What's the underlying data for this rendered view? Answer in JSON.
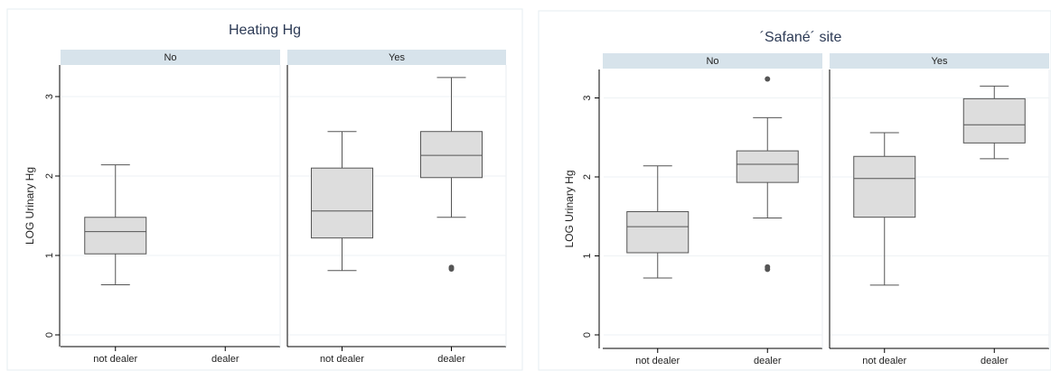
{
  "chart_data": [
    {
      "type": "box",
      "title": "Heating Hg",
      "ylabel": "LOG Urinary Hg",
      "ylim": [
        0,
        3.3
      ],
      "yticks": [
        "0",
        "1",
        "2",
        "3"
      ],
      "categories": [
        "not dealer",
        "dealer"
      ],
      "grid": true,
      "panels": [
        {
          "label": "No",
          "boxes": [
            {
              "category": "not dealer",
              "min": 0.63,
              "q1": 1.02,
              "median": 1.3,
              "q3": 1.48,
              "max": 2.14,
              "outliers": []
            },
            null
          ]
        },
        {
          "label": "Yes",
          "boxes": [
            {
              "category": "not dealer",
              "min": 0.81,
              "q1": 1.22,
              "median": 1.56,
              "q3": 2.1,
              "max": 2.56,
              "outliers": []
            },
            {
              "category": "dealer",
              "min": 1.48,
              "q1": 1.98,
              "median": 2.26,
              "q3": 2.56,
              "max": 3.24,
              "outliers": [
                0.83,
                0.85
              ]
            }
          ]
        }
      ]
    },
    {
      "type": "box",
      "title": "´Safané´ site",
      "ylabel": "LOG Urinary Hg",
      "ylim": [
        0,
        3.3
      ],
      "yticks": [
        "0",
        "1",
        "2",
        "3"
      ],
      "categories": [
        "not dealer",
        "dealer"
      ],
      "grid": true,
      "panels": [
        {
          "label": "No",
          "boxes": [
            {
              "category": "not dealer",
              "min": 0.72,
              "q1": 1.04,
              "median": 1.37,
              "q3": 1.56,
              "max": 2.14,
              "outliers": []
            },
            {
              "category": "dealer",
              "min": 1.48,
              "q1": 1.93,
              "median": 2.16,
              "q3": 2.33,
              "max": 2.75,
              "outliers": [
                3.24,
                0.83,
                0.86
              ]
            }
          ]
        },
        {
          "label": "Yes",
          "boxes": [
            {
              "category": "not dealer",
              "min": 0.63,
              "q1": 1.49,
              "median": 1.98,
              "q3": 2.26,
              "max": 2.56,
              "outliers": []
            },
            {
              "category": "dealer",
              "min": 2.23,
              "q1": 2.43,
              "median": 2.66,
              "q3": 2.99,
              "max": 3.15,
              "outliers": []
            }
          ]
        }
      ]
    }
  ]
}
